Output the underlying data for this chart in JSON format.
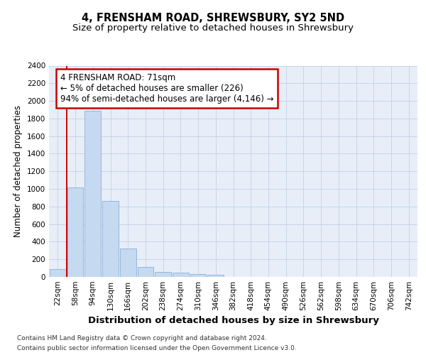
{
  "title": "4, FRENSHAM ROAD, SHREWSBURY, SY2 5ND",
  "subtitle": "Size of property relative to detached houses in Shrewsbury",
  "xlabel": "Distribution of detached houses by size in Shrewsbury",
  "ylabel": "Number of detached properties",
  "bar_values": [
    90,
    1020,
    1890,
    860,
    320,
    115,
    58,
    52,
    30,
    25,
    0,
    0,
    0,
    0,
    0,
    0,
    0,
    0,
    0,
    0,
    0
  ],
  "bar_labels": [
    "22sqm",
    "58sqm",
    "94sqm",
    "130sqm",
    "166sqm",
    "202sqm",
    "238sqm",
    "274sqm",
    "310sqm",
    "346sqm",
    "382sqm",
    "418sqm",
    "454sqm",
    "490sqm",
    "526sqm",
    "562sqm",
    "598sqm",
    "634sqm",
    "670sqm",
    "706sqm",
    "742sqm"
  ],
  "bar_color": "#c5d9f0",
  "bar_edge_color": "#8ab0d8",
  "grid_color": "#c8d4e8",
  "bg_color": "#e8eef8",
  "vline_color": "#cc0000",
  "vline_position": 1,
  "annotation_text": "4 FRENSHAM ROAD: 71sqm\n← 5% of detached houses are smaller (226)\n94% of semi-detached houses are larger (4,146) →",
  "annotation_box_color": "#cc0000",
  "ylim": [
    0,
    2400
  ],
  "yticks": [
    0,
    200,
    400,
    600,
    800,
    1000,
    1200,
    1400,
    1600,
    1800,
    2000,
    2200,
    2400
  ],
  "footer_line1": "Contains HM Land Registry data © Crown copyright and database right 2024.",
  "footer_line2": "Contains public sector information licensed under the Open Government Licence v3.0.",
  "title_fontsize": 10.5,
  "subtitle_fontsize": 9.5,
  "ylabel_fontsize": 8.5,
  "xlabel_fontsize": 9.5,
  "tick_fontsize": 7.5,
  "footer_fontsize": 6.5
}
